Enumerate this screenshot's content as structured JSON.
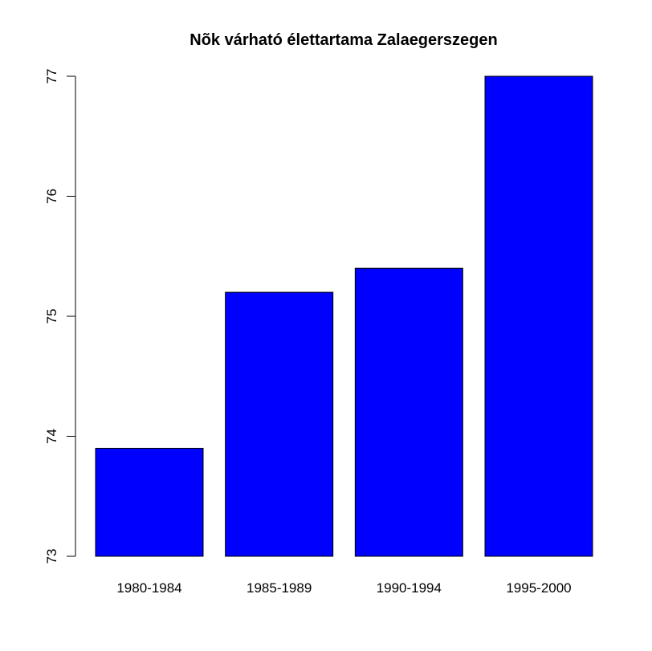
{
  "chart_data": {
    "type": "bar",
    "title": "Nõk várható élettartama Zalaegerszegen",
    "xlabel": "",
    "ylabel": "",
    "categories": [
      "1980-1984",
      "1985-1989",
      "1990-1994",
      "1995-2000"
    ],
    "values": [
      73.9,
      75.2,
      75.4,
      77.0
    ],
    "ylim": [
      73,
      77
    ],
    "yticks": [
      "73",
      "74",
      "75",
      "76",
      "77"
    ],
    "grid": false,
    "legend": "none",
    "colors": {
      "bar_fill": "#0000ff",
      "bar_stroke": "#000000",
      "axis": "#000000"
    }
  }
}
